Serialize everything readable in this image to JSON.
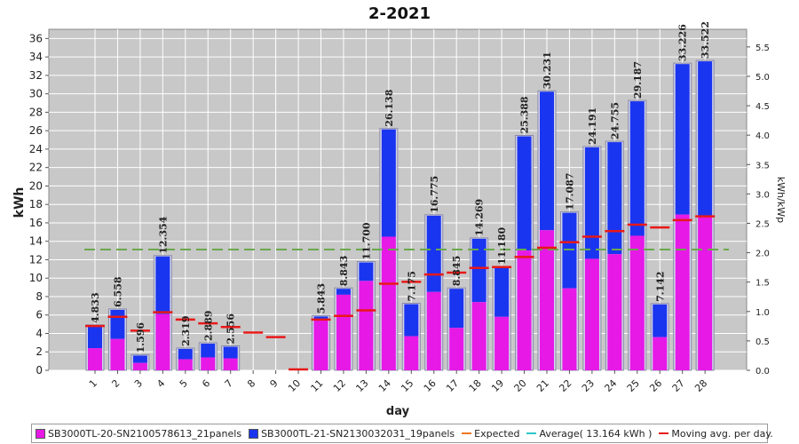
{
  "chart_data": {
    "type": "bar",
    "title": "2-2021",
    "xlabel": "day",
    "ylabel": "kWh",
    "y2label": "kWh/kWp",
    "ylim": [
      0,
      37
    ],
    "y2lim": [
      0,
      5.8
    ],
    "yticks": [
      "0",
      "2",
      "4",
      "6",
      "8",
      "10",
      "12",
      "14",
      "16",
      "18",
      "20",
      "22",
      "24",
      "26",
      "28",
      "30",
      "32",
      "34",
      "36"
    ],
    "y2ticks": [
      "0.0",
      "0.5",
      "1.0",
      "1.5",
      "2.0",
      "2.5",
      "3.0",
      "3.5",
      "4.0",
      "4.5",
      "5.0",
      "5.5"
    ],
    "categories": [
      "1",
      "2",
      "3",
      "4",
      "5",
      "6",
      "7",
      "8",
      "9",
      "10",
      "11",
      "12",
      "13",
      "14",
      "15",
      "16",
      "17",
      "18",
      "19",
      "20",
      "21",
      "22",
      "23",
      "24",
      "25",
      "26",
      "27",
      "28"
    ],
    "series": [
      {
        "name": "SB3000TL-20-SN2100578613_21panels",
        "color": "#e619e6",
        "values": [
          2.4,
          3.4,
          0.8,
          6.1,
          1.2,
          1.4,
          1.3,
          0,
          0,
          0,
          5.6,
          8.2,
          9.7,
          14.5,
          3.7,
          8.5,
          4.6,
          7.4,
          5.8,
          13.0,
          15.2,
          8.9,
          12.1,
          12.6,
          14.6,
          3.6,
          16.9,
          16.8
        ]
      },
      {
        "name": "SB3000TL-21-SN2130032031_19panels",
        "color": "#1a35f0",
        "values": [
          2.433,
          3.158,
          0.798,
          6.254,
          1.119,
          1.489,
          1.256,
          0,
          0,
          0,
          0.243,
          0.643,
          2.0,
          11.638,
          3.475,
          8.275,
          4.245,
          6.869,
          5.38,
          12.388,
          15.031,
          8.187,
          12.091,
          12.155,
          14.587,
          3.542,
          16.326,
          16.722
        ]
      }
    ],
    "totals": [
      "4.833",
      "6.558",
      "1.596",
      "12.354",
      "2.319",
      "2.889",
      "2.556",
      "",
      "",
      "",
      "5.843",
      "8.843",
      "11.700",
      "26.138",
      "7.175",
      "16.775",
      "8.845",
      "14.269",
      "11.180",
      "25.388",
      "30.231",
      "17.087",
      "24.191",
      "24.755",
      "29.187",
      "7.142",
      "33.226",
      "33.522"
    ],
    "expected": 13.1,
    "moving_avg": [
      4.8,
      5.8,
      4.3,
      6.3,
      5.5,
      5.1,
      4.7,
      4.1,
      3.6,
      0.1,
      5.5,
      5.9,
      6.5,
      9.4,
      9.6,
      10.4,
      10.6,
      11.1,
      11.2,
      12.3,
      13.3,
      13.9,
      14.5,
      15.1,
      15.8,
      15.5,
      16.3,
      16.7
    ],
    "legend": [
      {
        "label": "SB3000TL-20-SN2100578613_21panels",
        "kind": "box",
        "color": "#e619e6"
      },
      {
        "label": "SB3000TL-21-SN2130032031_19panels",
        "kind": "box",
        "color": "#1a35f0"
      },
      {
        "label": "Expected",
        "kind": "line",
        "color": "#f07820"
      },
      {
        "label": "Average( 13.164 kWh )",
        "kind": "line",
        "color": "#2ec6c6"
      },
      {
        "label": "Moving avg. per day.",
        "kind": "line",
        "color": "#e81818"
      }
    ],
    "legend_position": "bottom",
    "colors": {
      "plot_bg": "#c8c8c8",
      "grid": "#ffffff",
      "expected_line": "#6aa84f",
      "moving_avg": "#e81818"
    }
  }
}
